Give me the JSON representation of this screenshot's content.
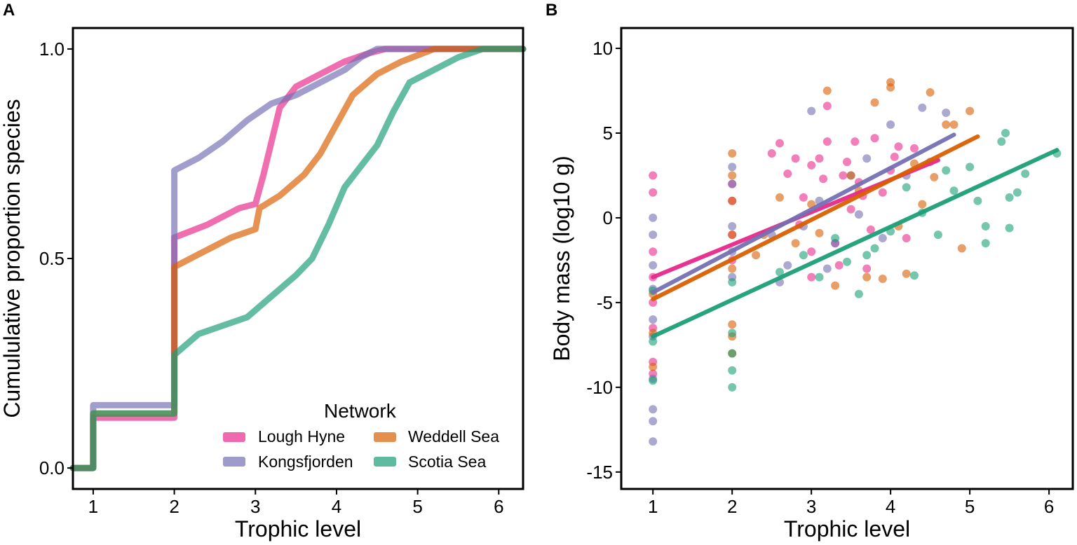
{
  "colors": {
    "Lough Hyne": "#E7298A",
    "Kongsfjorden": "#7570B3",
    "Weddell Sea": "#D95F02",
    "Scotia Sea": "#1B9E77"
  },
  "chart_data": [
    {
      "type": "line",
      "panel": "A",
      "xlabel": "Trophic level",
      "ylabel": "Cumululative proportion species",
      "xlim": [
        0.75,
        6.3
      ],
      "ylim": [
        -0.05,
        1.05
      ],
      "xticks": [
        "1",
        "2",
        "3",
        "4",
        "5",
        "6"
      ],
      "yticks": [
        "0.0",
        "0.5",
        "1.0"
      ],
      "legend": {
        "title": "Network",
        "position": "bottom-right",
        "entries": [
          "Lough Hyne",
          "Weddell Sea",
          "Kongsfjorden",
          "Scotia Sea"
        ]
      },
      "series": [
        {
          "name": "Lough Hyne",
          "points": [
            [
              0.75,
              0
            ],
            [
              1,
              0
            ],
            [
              1,
              0.12
            ],
            [
              2,
              0.12
            ],
            [
              2,
              0.55
            ],
            [
              2.4,
              0.58
            ],
            [
              2.8,
              0.62
            ],
            [
              3.0,
              0.63
            ],
            [
              3.1,
              0.7
            ],
            [
              3.2,
              0.78
            ],
            [
              3.3,
              0.86
            ],
            [
              3.5,
              0.91
            ],
            [
              3.8,
              0.94
            ],
            [
              4.1,
              0.97
            ],
            [
              4.4,
              0.99
            ],
            [
              4.6,
              1.0
            ],
            [
              6.3,
              1.0
            ]
          ]
        },
        {
          "name": "Kongsfjorden",
          "points": [
            [
              0.75,
              0
            ],
            [
              1,
              0
            ],
            [
              1,
              0.15
            ],
            [
              2,
              0.15
            ],
            [
              2,
              0.71
            ],
            [
              2.3,
              0.74
            ],
            [
              2.6,
              0.78
            ],
            [
              2.9,
              0.83
            ],
            [
              3.2,
              0.87
            ],
            [
              3.5,
              0.89
            ],
            [
              3.8,
              0.92
            ],
            [
              4.1,
              0.95
            ],
            [
              4.3,
              0.98
            ],
            [
              4.5,
              1.0
            ],
            [
              6.3,
              1.0
            ]
          ]
        },
        {
          "name": "Weddell Sea",
          "points": [
            [
              0.75,
              0
            ],
            [
              1,
              0
            ],
            [
              1,
              0.13
            ],
            [
              2,
              0.13
            ],
            [
              2,
              0.48
            ],
            [
              2.3,
              0.51
            ],
            [
              2.7,
              0.55
            ],
            [
              3.0,
              0.57
            ],
            [
              3.05,
              0.62
            ],
            [
              3.3,
              0.65
            ],
            [
              3.6,
              0.7
            ],
            [
              3.8,
              0.75
            ],
            [
              4.0,
              0.82
            ],
            [
              4.2,
              0.89
            ],
            [
              4.5,
              0.94
            ],
            [
              4.8,
              0.97
            ],
            [
              5.2,
              1.0
            ],
            [
              6.3,
              1.0
            ]
          ]
        },
        {
          "name": "Scotia Sea",
          "points": [
            [
              0.75,
              0
            ],
            [
              1,
              0
            ],
            [
              1,
              0.13
            ],
            [
              2,
              0.13
            ],
            [
              2,
              0.27
            ],
            [
              2.3,
              0.32
            ],
            [
              2.6,
              0.34
            ],
            [
              2.9,
              0.36
            ],
            [
              3.2,
              0.41
            ],
            [
              3.5,
              0.46
            ],
            [
              3.7,
              0.5
            ],
            [
              3.9,
              0.58
            ],
            [
              4.1,
              0.67
            ],
            [
              4.3,
              0.72
            ],
            [
              4.5,
              0.77
            ],
            [
              4.7,
              0.85
            ],
            [
              4.9,
              0.92
            ],
            [
              5.2,
              0.95
            ],
            [
              5.5,
              0.98
            ],
            [
              5.8,
              1.0
            ],
            [
              6.3,
              1.0
            ]
          ]
        }
      ]
    },
    {
      "type": "scatter",
      "panel": "B",
      "xlabel": "Trophic level",
      "ylabel": "Body mass (log10 g)",
      "xlim": [
        0.6,
        6.3
      ],
      "ylim": [
        -16,
        11.2
      ],
      "xticks": [
        "1",
        "2",
        "3",
        "4",
        "5",
        "6"
      ],
      "yticks": [
        "10",
        "5",
        "0",
        "-5",
        "-10",
        "-15"
      ],
      "series": [
        {
          "name": "Lough Hyne",
          "fit": {
            "x": [
              1,
              4.6
            ],
            "y": [
              -3.5,
              3.4
            ]
          },
          "points": [
            [
              1,
              2.5
            ],
            [
              1,
              1.5
            ],
            [
              1,
              -2
            ],
            [
              1,
              -3.5
            ],
            [
              1,
              -5
            ],
            [
              1,
              -6.5
            ],
            [
              1,
              -8.5
            ],
            [
              1,
              -9.2
            ],
            [
              2,
              2
            ],
            [
              2,
              1
            ],
            [
              2,
              -1
            ],
            [
              2,
              -2.5
            ],
            [
              2.5,
              3.8
            ],
            [
              2.6,
              4.4
            ],
            [
              2.7,
              2.6
            ],
            [
              2.8,
              3.5
            ],
            [
              2.9,
              1.2
            ],
            [
              3,
              3.1
            ],
            [
              3,
              -3.5
            ],
            [
              3,
              -2
            ],
            [
              3.1,
              3.5
            ],
            [
              3.2,
              4.5
            ],
            [
              3.3,
              -1.5
            ],
            [
              3.4,
              2.5
            ],
            [
              3.5,
              0.5
            ],
            [
              3.55,
              4.5
            ],
            [
              3.6,
              2.1
            ],
            [
              3.7,
              -3
            ],
            [
              3.8,
              4.7
            ],
            [
              3.9,
              1.5
            ],
            [
              4,
              2.8
            ],
            [
              4.1,
              4.2
            ],
            [
              4.2,
              -1.2
            ],
            [
              4.3,
              4.1
            ],
            [
              3.2,
              6.6
            ],
            [
              3.45,
              3.3
            ],
            [
              3.65,
              1.3
            ],
            [
              3.75,
              -0.7
            ],
            [
              2.85,
              -0.4
            ],
            [
              3.35,
              -2.8
            ],
            [
              4.05,
              3.6
            ],
            [
              3.15,
              2.3
            ]
          ]
        },
        {
          "name": "Kongsfjorden",
          "fit": {
            "x": [
              1,
              4.8
            ],
            "y": [
              -4.4,
              4.9
            ]
          },
          "points": [
            [
              1,
              0
            ],
            [
              1,
              -1
            ],
            [
              1,
              -2.8
            ],
            [
              1,
              -4.2
            ],
            [
              1,
              -6
            ],
            [
              1,
              -7
            ],
            [
              1,
              -9.5
            ],
            [
              1,
              -11.3
            ],
            [
              1,
              -12
            ],
            [
              1,
              -13.2
            ],
            [
              2,
              3
            ],
            [
              2,
              2
            ],
            [
              2,
              -0.5
            ],
            [
              2,
              -2
            ],
            [
              2,
              -3.5
            ],
            [
              2.5,
              -1
            ],
            [
              2.7,
              -2.8
            ],
            [
              2.9,
              -0.5
            ],
            [
              3,
              6.3
            ],
            [
              3.1,
              1
            ],
            [
              3.3,
              -1.5
            ],
            [
              3.5,
              2.5
            ],
            [
              3.7,
              3.5
            ],
            [
              3.9,
              -1.2
            ],
            [
              4,
              5.5
            ],
            [
              4.2,
              2.5
            ],
            [
              4.4,
              6.5
            ],
            [
              4.7,
              6.2
            ],
            [
              4.5,
              3.3
            ],
            [
              3.2,
              -3
            ],
            [
              2.6,
              -3.8
            ],
            [
              3.6,
              0.2
            ]
          ]
        },
        {
          "name": "Weddell Sea",
          "fit": {
            "x": [
              1,
              5.1
            ],
            "y": [
              -4.8,
              4.8
            ]
          },
          "points": [
            [
              1,
              -4.5
            ],
            [
              1,
              -6.8
            ],
            [
              1,
              -8.8
            ],
            [
              2,
              3.8
            ],
            [
              2,
              2.5
            ],
            [
              2,
              1
            ],
            [
              2,
              -1
            ],
            [
              2,
              -3
            ],
            [
              2,
              -6.3
            ],
            [
              2,
              -7
            ],
            [
              2,
              -8
            ],
            [
              2.4,
              -1
            ],
            [
              2.6,
              1.2
            ],
            [
              2.8,
              -1.5
            ],
            [
              3,
              0.8
            ],
            [
              3.2,
              7.5
            ],
            [
              3.3,
              -4
            ],
            [
              3.5,
              2.5
            ],
            [
              3.7,
              -3.5
            ],
            [
              3.8,
              6.8
            ],
            [
              4,
              8
            ],
            [
              4,
              7.7
            ],
            [
              4.1,
              -0.5
            ],
            [
              4.3,
              3.2
            ],
            [
              4.5,
              7.4
            ],
            [
              4.7,
              5.5
            ],
            [
              4.8,
              5.5
            ],
            [
              4.9,
              -1.8
            ],
            [
              5,
              6.3
            ],
            [
              4.2,
              -3.3
            ],
            [
              3.9,
              -3.6
            ],
            [
              4.55,
              2.4
            ],
            [
              3.6,
              1.6
            ],
            [
              2.3,
              -2.2
            ],
            [
              3.1,
              -0.9
            ],
            [
              4.4,
              0.8
            ]
          ]
        },
        {
          "name": "Scotia Sea",
          "fit": {
            "x": [
              1,
              6.1
            ],
            "y": [
              -7.0,
              4.0
            ]
          },
          "points": [
            [
              1,
              -4.3
            ],
            [
              1,
              -7.3
            ],
            [
              1,
              -9.6
            ],
            [
              2,
              -6.8
            ],
            [
              2,
              -8
            ],
            [
              2,
              -9
            ],
            [
              2,
              -10
            ],
            [
              2,
              -3.8
            ],
            [
              2.6,
              -3.2
            ],
            [
              2.9,
              -2.2
            ],
            [
              3.1,
              -3.5
            ],
            [
              3.3,
              -1.2
            ],
            [
              3.6,
              -4.5
            ],
            [
              3.8,
              -1.8
            ],
            [
              4,
              -0.8
            ],
            [
              4.2,
              1.8
            ],
            [
              4.4,
              0.3
            ],
            [
              4.6,
              -1
            ],
            [
              4.8,
              1.6
            ],
            [
              5,
              3
            ],
            [
              5.2,
              -1.5
            ],
            [
              5.2,
              -0.5
            ],
            [
              5.4,
              4.5
            ],
            [
              5.45,
              5
            ],
            [
              5.5,
              1.2
            ],
            [
              5.5,
              -0.6
            ],
            [
              5.6,
              1.5
            ],
            [
              5.7,
              2.6
            ],
            [
              6.1,
              3.8
            ],
            [
              4.3,
              -3.4
            ],
            [
              3.7,
              -2.2
            ],
            [
              4.7,
              2.8
            ],
            [
              5.1,
              1
            ],
            [
              3.45,
              -2.6
            ]
          ]
        }
      ]
    }
  ]
}
